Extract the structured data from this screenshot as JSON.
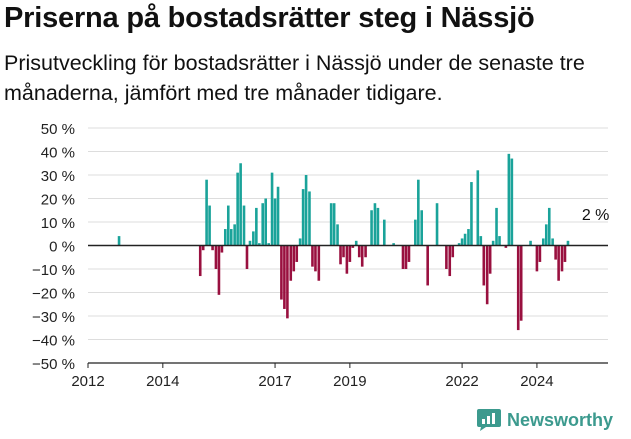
{
  "header": {
    "title": "Priserna på bostadsrätter steg i Nässjö",
    "subtitle": "Prisutveckling för bostadsrätter i Nässjö under de senaste tre månaderna, jämfört med tre månader tidigare."
  },
  "brand": {
    "name": "Newsworthy",
    "icon": "newsworthy-logo-icon"
  },
  "colors": {
    "positive": "#1aa39a",
    "negative": "#99103f",
    "grid": "#dddddd",
    "axis": "#222222"
  },
  "chart_data": {
    "type": "bar",
    "title": "Priserna på bostadsrätter steg i Nässjö",
    "subtitle": "Prisutveckling för bostadsrätter i Nässjö under de senaste tre månaderna, jämfört med tre månader tidigare.",
    "xlabel": "",
    "ylabel": "",
    "unit": "%",
    "ylim": [
      -50,
      50
    ],
    "xlim": [
      2012.0,
      2025.9
    ],
    "y_ticks": [
      50,
      40,
      30,
      20,
      10,
      0,
      -10,
      -20,
      -30,
      -40,
      -50
    ],
    "y_tick_labels": [
      "50 %",
      "40 %",
      "30 %",
      "20 %",
      "10 %",
      "0 %",
      "−10 %",
      "−20 %",
      "−30 %",
      "−40 %",
      "−50 %"
    ],
    "x_ticks": [
      2012,
      2014,
      2017,
      2019,
      2022,
      2024
    ],
    "x_tick_labels": [
      "2012",
      "2014",
      "2017",
      "2019",
      "2022",
      "2024"
    ],
    "grid": true,
    "annotation": {
      "text": "2 %",
      "x": 2025.2,
      "y": 2
    },
    "series": [
      {
        "x": [
          2012.83,
          2015.0,
          2015.08,
          2015.17,
          2015.25,
          2015.33,
          2015.42,
          2015.5,
          2015.58,
          2015.67,
          2015.75,
          2015.83,
          2015.92,
          2016.0,
          2016.08,
          2016.17,
          2016.25,
          2016.33,
          2016.42,
          2016.5,
          2016.58,
          2016.67,
          2016.75,
          2016.83,
          2016.92,
          2017.0,
          2017.08,
          2017.17,
          2017.25,
          2017.33,
          2017.42,
          2017.5,
          2017.58,
          2017.67,
          2017.75,
          2017.83,
          2017.92,
          2018.0,
          2018.08,
          2018.17,
          2018.25,
          2018.33,
          2018.42,
          2018.5,
          2018.58,
          2018.67,
          2018.75,
          2018.83,
          2018.92,
          2019.0,
          2019.08,
          2019.17,
          2019.25,
          2019.33,
          2019.42,
          2019.5,
          2019.58,
          2019.67,
          2019.75,
          2019.83,
          2019.92,
          2020.0,
          2020.08,
          2020.17,
          2020.25,
          2020.33,
          2020.42,
          2020.5,
          2020.58,
          2020.67,
          2020.75,
          2020.83,
          2020.92,
          2021.0,
          2021.08,
          2021.17,
          2021.25,
          2021.33,
          2021.42,
          2021.5,
          2021.58,
          2021.67,
          2021.75,
          2021.83,
          2021.92,
          2022.0,
          2022.08,
          2022.17,
          2022.25,
          2022.33,
          2022.42,
          2022.5,
          2022.58,
          2022.67,
          2022.75,
          2022.83,
          2022.92,
          2023.0,
          2023.08,
          2023.17,
          2023.25,
          2023.33,
          2023.42,
          2023.5,
          2023.58,
          2023.67,
          2023.75,
          2023.83,
          2023.92,
          2024.0,
          2024.08,
          2024.17,
          2024.25,
          2024.33,
          2024.42,
          2024.5,
          2024.58,
          2024.67,
          2024.75,
          2024.83
        ],
        "values": [
          4,
          -13,
          -2,
          28,
          17,
          -2,
          -10,
          -21,
          -3,
          7,
          17,
          7,
          9,
          31,
          35,
          17,
          -10,
          2,
          6,
          16,
          1,
          18,
          20,
          1,
          31,
          20,
          25,
          -23,
          -27,
          -31,
          -15,
          -11,
          -7,
          3,
          24,
          30,
          23,
          -9,
          -11,
          -15,
          0,
          0,
          0,
          18,
          18,
          9,
          -8,
          -5,
          -12,
          -7,
          -1,
          2,
          -5,
          -9,
          -5,
          0,
          15,
          18,
          16,
          0,
          11,
          0,
          0,
          1,
          0,
          0,
          -10,
          -10,
          -7,
          0,
          11,
          28,
          15,
          0,
          -17,
          0,
          0,
          18,
          0,
          0,
          -10,
          -13,
          -5,
          0,
          1,
          3,
          5,
          7,
          27,
          0,
          32,
          4,
          -17,
          -25,
          -12,
          2,
          16,
          4,
          0,
          -1,
          39,
          37,
          0,
          -36,
          -32,
          0,
          0,
          2,
          0,
          -11,
          -7,
          3,
          9,
          16,
          3,
          -6,
          -15,
          -11,
          -7,
          2
        ]
      }
    ]
  }
}
